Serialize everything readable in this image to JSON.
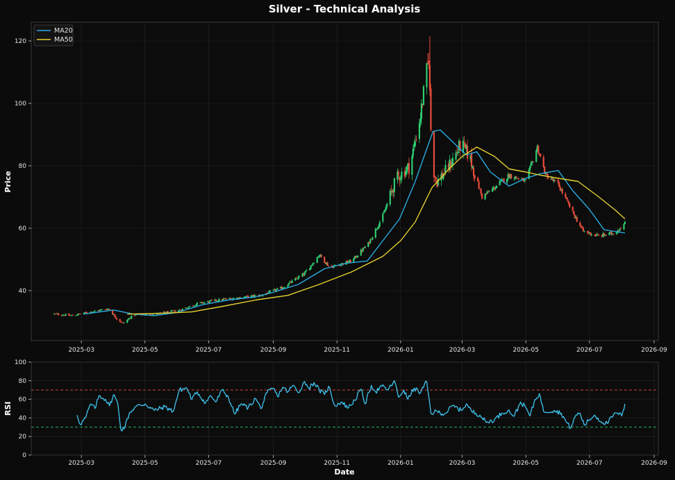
{
  "chart_data": [
    {
      "type": "candlestick",
      "title": "Silver - Technical Analysis",
      "xlabel": "",
      "ylabel": "Price",
      "ylim": [
        24,
        126
      ],
      "yticks": [
        40,
        60,
        80,
        100,
        120
      ],
      "xlim": [
        "2025-01-12",
        "2026-09-05"
      ],
      "xticks": [
        "2025-03-01",
        "2025-05-01",
        "2025-07-01",
        "2025-09-01",
        "2025-11-01",
        "2026-01-01",
        "2026-03-01",
        "2026-05-01",
        "2026-07-01",
        "2026-09-01"
      ],
      "xtick_labels": [
        "2025-03",
        "2025-05",
        "2025-07",
        "2025-09",
        "2025-11",
        "2026-01",
        "2026-03",
        "2026-05",
        "2026-07",
        "2026-09"
      ],
      "grid": true,
      "legend_position": "top-left",
      "up_color": "#2ecc71",
      "down_color": "#e74c3c",
      "close_anchors": [
        [
          "2025-02-03",
          32.5
        ],
        [
          "2025-02-20",
          32.0
        ],
        [
          "2025-03-10",
          33.2
        ],
        [
          "2025-03-27",
          34.2
        ],
        [
          "2025-04-04",
          31.0
        ],
        [
          "2025-04-10",
          29.5
        ],
        [
          "2025-04-20",
          32.2
        ],
        [
          "2025-05-10",
          32.5
        ],
        [
          "2025-06-01",
          33.5
        ],
        [
          "2025-06-20",
          35.8
        ],
        [
          "2025-07-10",
          37.0
        ],
        [
          "2025-08-01",
          37.8
        ],
        [
          "2025-08-20",
          38.5
        ],
        [
          "2025-09-10",
          41.0
        ],
        [
          "2025-10-01",
          45.5
        ],
        [
          "2025-10-15",
          51.5
        ],
        [
          "2025-10-25",
          47.5
        ],
        [
          "2025-11-15",
          49.5
        ],
        [
          "2025-12-01",
          55.0
        ],
        [
          "2025-12-15",
          64.0
        ],
        [
          "2025-12-28",
          76.0
        ],
        [
          "2026-01-10",
          80.0
        ],
        [
          "2026-01-20",
          96.0
        ],
        [
          "2026-01-28",
          115.0
        ],
        [
          "2026-01-31",
          80.0
        ],
        [
          "2026-02-05",
          75.0
        ],
        [
          "2026-02-15",
          79.0
        ],
        [
          "2026-02-28",
          87.0
        ],
        [
          "2026-03-08",
          83.0
        ],
        [
          "2026-03-20",
          70.0
        ],
        [
          "2026-04-01",
          73.0
        ],
        [
          "2026-04-15",
          77.0
        ],
        [
          "2026-05-01",
          75.0
        ],
        [
          "2026-05-12",
          86.0
        ],
        [
          "2026-05-20",
          77.0
        ],
        [
          "2026-06-01",
          74.0
        ],
        [
          "2026-06-15",
          65.0
        ],
        [
          "2026-06-25",
          59.0
        ],
        [
          "2026-07-10",
          57.5
        ],
        [
          "2026-07-25",
          58.5
        ],
        [
          "2026-08-04",
          61.5
        ]
      ],
      "series": [
        {
          "name": "MA20",
          "color": "#29abe2",
          "points": [
            [
              "2025-03-03",
              32.5
            ],
            [
              "2025-04-01",
              33.8
            ],
            [
              "2025-04-20",
              32.5
            ],
            [
              "2025-05-10",
              32.0
            ],
            [
              "2025-06-01",
              33.0
            ],
            [
              "2025-06-25",
              35.5
            ],
            [
              "2025-07-20",
              37.0
            ],
            [
              "2025-08-15",
              38.0
            ],
            [
              "2025-09-01",
              39.5
            ],
            [
              "2025-09-25",
              42.0
            ],
            [
              "2025-10-20",
              47.0
            ],
            [
              "2025-11-10",
              48.8
            ],
            [
              "2025-11-30",
              49.5
            ],
            [
              "2025-12-15",
              56.0
            ],
            [
              "2025-12-31",
              63.0
            ],
            [
              "2026-01-15",
              75.0
            ],
            [
              "2026-02-01",
              91.0
            ],
            [
              "2026-02-08",
              91.5
            ],
            [
              "2026-02-22",
              87.0
            ],
            [
              "2026-03-05",
              83.5
            ],
            [
              "2026-03-15",
              84.5
            ],
            [
              "2026-03-28",
              78.0
            ],
            [
              "2026-04-15",
              73.5
            ],
            [
              "2026-05-01",
              76.0
            ],
            [
              "2026-05-15",
              77.5
            ],
            [
              "2026-06-01",
              78.5
            ],
            [
              "2026-06-15",
              72.0
            ],
            [
              "2026-07-01",
              66.0
            ],
            [
              "2026-07-15",
              59.5
            ],
            [
              "2026-08-04",
              58.5
            ]
          ]
        },
        {
          "name": "MA50",
          "color": "#e6d22e",
          "points": [
            [
              "2025-04-14",
              32.5
            ],
            [
              "2025-05-15",
              32.7
            ],
            [
              "2025-06-15",
              33.2
            ],
            [
              "2025-07-15",
              35.0
            ],
            [
              "2025-08-15",
              37.0
            ],
            [
              "2025-09-15",
              38.5
            ],
            [
              "2025-10-15",
              42.0
            ],
            [
              "2025-11-15",
              46.0
            ],
            [
              "2025-12-15",
              51.0
            ],
            [
              "2026-01-01",
              56.0
            ],
            [
              "2026-01-15",
              62.0
            ],
            [
              "2026-01-31",
              73.0
            ],
            [
              "2026-02-15",
              78.5
            ],
            [
              "2026-03-01",
              83.0
            ],
            [
              "2026-03-15",
              86.0
            ],
            [
              "2026-04-01",
              83.0
            ],
            [
              "2026-04-15",
              79.0
            ],
            [
              "2026-05-01",
              78.0
            ],
            [
              "2026-05-15",
              77.0
            ],
            [
              "2026-06-01",
              76.0
            ],
            [
              "2026-06-20",
              75.0
            ],
            [
              "2026-07-10",
              70.0
            ],
            [
              "2026-07-25",
              66.0
            ],
            [
              "2026-08-04",
              63.0
            ]
          ]
        }
      ]
    },
    {
      "type": "line",
      "xlabel": "Date",
      "ylabel": "RSI",
      "ylim": [
        0,
        100
      ],
      "yticks": [
        0,
        20,
        40,
        60,
        80,
        100
      ],
      "grid": true,
      "overbought": 70,
      "oversold": 30,
      "overbought_color": "#e74c3c",
      "oversold_color": "#2ecc71",
      "series": [
        {
          "name": "RSI",
          "color": "#3ec6f2",
          "points": [
            [
              "2025-02-25",
              43
            ],
            [
              "2025-02-28",
              33
            ],
            [
              "2025-03-05",
              40
            ],
            [
              "2025-03-10",
              55
            ],
            [
              "2025-03-14",
              50
            ],
            [
              "2025-03-18",
              64
            ],
            [
              "2025-03-24",
              60
            ],
            [
              "2025-03-28",
              53
            ],
            [
              "2025-04-01",
              65
            ],
            [
              "2025-04-05",
              55
            ],
            [
              "2025-04-08",
              27
            ],
            [
              "2025-04-12",
              31
            ],
            [
              "2025-04-16",
              45
            ],
            [
              "2025-04-22",
              52
            ],
            [
              "2025-05-01",
              55
            ],
            [
              "2025-05-10",
              48
            ],
            [
              "2025-05-20",
              52
            ],
            [
              "2025-05-28",
              47
            ],
            [
              "2025-06-03",
              70
            ],
            [
              "2025-06-10",
              72
            ],
            [
              "2025-06-15",
              60
            ],
            [
              "2025-06-20",
              68
            ],
            [
              "2025-06-28",
              56
            ],
            [
              "2025-07-03",
              64
            ],
            [
              "2025-07-08",
              57
            ],
            [
              "2025-07-14",
              70
            ],
            [
              "2025-07-20",
              62
            ],
            [
              "2025-07-26",
              44
            ],
            [
              "2025-08-01",
              55
            ],
            [
              "2025-08-08",
              51
            ],
            [
              "2025-08-15",
              61
            ],
            [
              "2025-08-20",
              50
            ],
            [
              "2025-08-26",
              67
            ],
            [
              "2025-09-01",
              72
            ],
            [
              "2025-09-05",
              63
            ],
            [
              "2025-09-10",
              73
            ],
            [
              "2025-09-15",
              68
            ],
            [
              "2025-09-20",
              75
            ],
            [
              "2025-09-25",
              67
            ],
            [
              "2025-10-01",
              79
            ],
            [
              "2025-10-05",
              72
            ],
            [
              "2025-10-10",
              78
            ],
            [
              "2025-10-15",
              70
            ],
            [
              "2025-10-20",
              65
            ],
            [
              "2025-10-24",
              74
            ],
            [
              "2025-10-30",
              53
            ],
            [
              "2025-11-05",
              57
            ],
            [
              "2025-11-12",
              51
            ],
            [
              "2025-11-18",
              59
            ],
            [
              "2025-11-24",
              71
            ],
            [
              "2025-11-28",
              55
            ],
            [
              "2025-12-04",
              75
            ],
            [
              "2025-12-08",
              68
            ],
            [
              "2025-12-14",
              74
            ],
            [
              "2025-12-20",
              70
            ],
            [
              "2025-12-26",
              80
            ],
            [
              "2025-12-30",
              62
            ],
            [
              "2026-01-04",
              70
            ],
            [
              "2026-01-08",
              60
            ],
            [
              "2026-01-14",
              72
            ],
            [
              "2026-01-20",
              67
            ],
            [
              "2026-01-26",
              79
            ],
            [
              "2026-01-30",
              45
            ],
            [
              "2026-02-05",
              47
            ],
            [
              "2026-02-12",
              44
            ],
            [
              "2026-02-20",
              53
            ],
            [
              "2026-02-28",
              48
            ],
            [
              "2026-03-05",
              55
            ],
            [
              "2026-03-10",
              47
            ],
            [
              "2026-03-18",
              43
            ],
            [
              "2026-03-24",
              35
            ],
            [
              "2026-04-01",
              38
            ],
            [
              "2026-04-08",
              45
            ],
            [
              "2026-04-14",
              48
            ],
            [
              "2026-04-20",
              42
            ],
            [
              "2026-04-26",
              57
            ],
            [
              "2026-05-01",
              51
            ],
            [
              "2026-05-05",
              42
            ],
            [
              "2026-05-10",
              60
            ],
            [
              "2026-05-14",
              66
            ],
            [
              "2026-05-18",
              47
            ],
            [
              "2026-05-28",
              48
            ],
            [
              "2026-06-04",
              45
            ],
            [
              "2026-06-09",
              35
            ],
            [
              "2026-06-13",
              29
            ],
            [
              "2026-06-18",
              43
            ],
            [
              "2026-06-22",
              45
            ],
            [
              "2026-06-26",
              32
            ],
            [
              "2026-07-01",
              38
            ],
            [
              "2026-07-06",
              43
            ],
            [
              "2026-07-12",
              36
            ],
            [
              "2026-07-18",
              34
            ],
            [
              "2026-07-24",
              43
            ],
            [
              "2026-07-28",
              45
            ],
            [
              "2026-08-01",
              42
            ],
            [
              "2026-08-04",
              55
            ]
          ]
        }
      ]
    }
  ]
}
